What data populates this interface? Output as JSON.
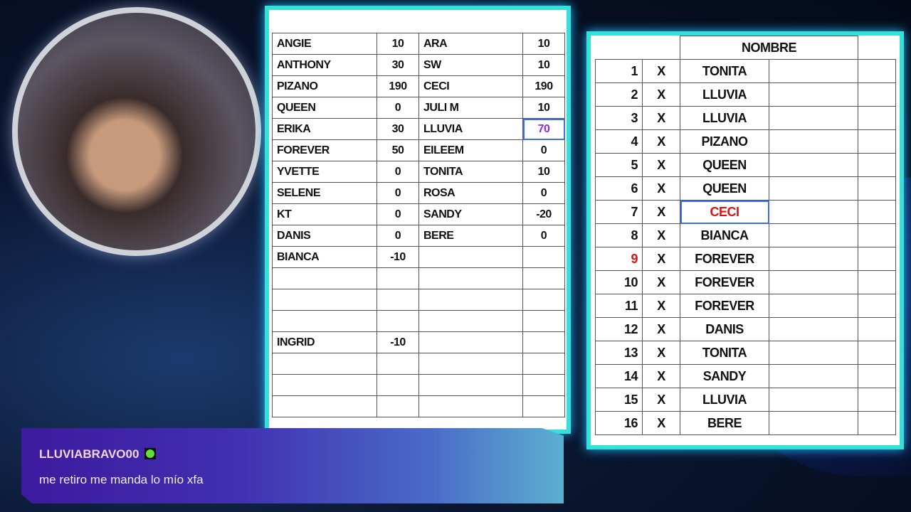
{
  "left_table": {
    "rows": [
      [
        "ANGIE",
        "10",
        "ARA",
        "10"
      ],
      [
        "ANTHONY",
        "30",
        "SW",
        "10"
      ],
      [
        "PIZANO",
        "190",
        "CECI",
        "190"
      ],
      [
        "QUEEN",
        "0",
        "JULI M",
        "10"
      ],
      [
        "ERIKA",
        "30",
        "LLUVIA",
        "70"
      ],
      [
        "FOREVER",
        "50",
        "EILEEM",
        "0"
      ],
      [
        "YVETTE",
        "0",
        "TONITA",
        "10"
      ],
      [
        "SELENE",
        "0",
        "ROSA",
        "0"
      ],
      [
        "KT",
        "0",
        "SANDY",
        "-20"
      ],
      [
        "DANIS",
        "0",
        "BERE",
        "0"
      ],
      [
        "BIANCA",
        "-10",
        "",
        ""
      ],
      [
        "",
        "",
        "",
        ""
      ],
      [
        "",
        "",
        "",
        ""
      ],
      [
        "",
        "",
        "",
        ""
      ],
      [
        "INGRID",
        "-10",
        "",
        ""
      ],
      [
        "",
        "",
        "",
        ""
      ],
      [
        "",
        "",
        "",
        ""
      ],
      [
        "",
        "",
        "",
        ""
      ]
    ],
    "selected_cell_color": "#8a2be2"
  },
  "right_table": {
    "header": "NOMBRE",
    "rows": [
      [
        "1",
        "X",
        "TONITA"
      ],
      [
        "2",
        "X",
        "LLUVIA"
      ],
      [
        "3",
        "X",
        "LLUVIA"
      ],
      [
        "4",
        "X",
        "PIZANO"
      ],
      [
        "5",
        "X",
        "QUEEN"
      ],
      [
        "6",
        "X",
        "QUEEN"
      ],
      [
        "7",
        "X",
        "CECI"
      ],
      [
        "8",
        "X",
        "BIANCA"
      ],
      [
        "9",
        "X",
        "FOREVER"
      ],
      [
        "10",
        "X",
        "FOREVER"
      ],
      [
        "11",
        "X",
        "FOREVER"
      ],
      [
        "12",
        "X",
        "DANIS"
      ],
      [
        "13",
        "X",
        "TONITA"
      ],
      [
        "14",
        "X",
        "SANDY"
      ],
      [
        "15",
        "X",
        "LLUVIA"
      ],
      [
        "16",
        "X",
        "BERE"
      ]
    ],
    "highlight_color": "#e01010"
  },
  "chat": {
    "username": "LLUVIABRAVO00",
    "badge_icon": "kick-badge-icon",
    "message": "me retiro me manda lo mío xfa"
  }
}
